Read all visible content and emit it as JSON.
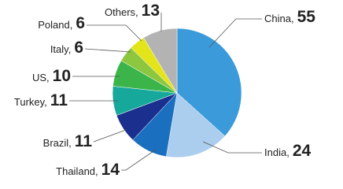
{
  "chart_data": {
    "type": "pie",
    "categories": [
      "China,",
      "India,",
      "Thailand,",
      "Brazil,",
      "Turkey,",
      "US,",
      "Italy,",
      "Poland,",
      "Others,"
    ],
    "values": [
      55,
      24,
      14,
      11,
      11,
      10,
      6,
      6,
      13
    ],
    "colors": [
      "#3b9ad9",
      "#abcdee",
      "#1a6fbf",
      "#1b2f8e",
      "#17a89c",
      "#3bb54a",
      "#8dc63f",
      "#e3e41a",
      "#b3b3b3"
    ]
  }
}
